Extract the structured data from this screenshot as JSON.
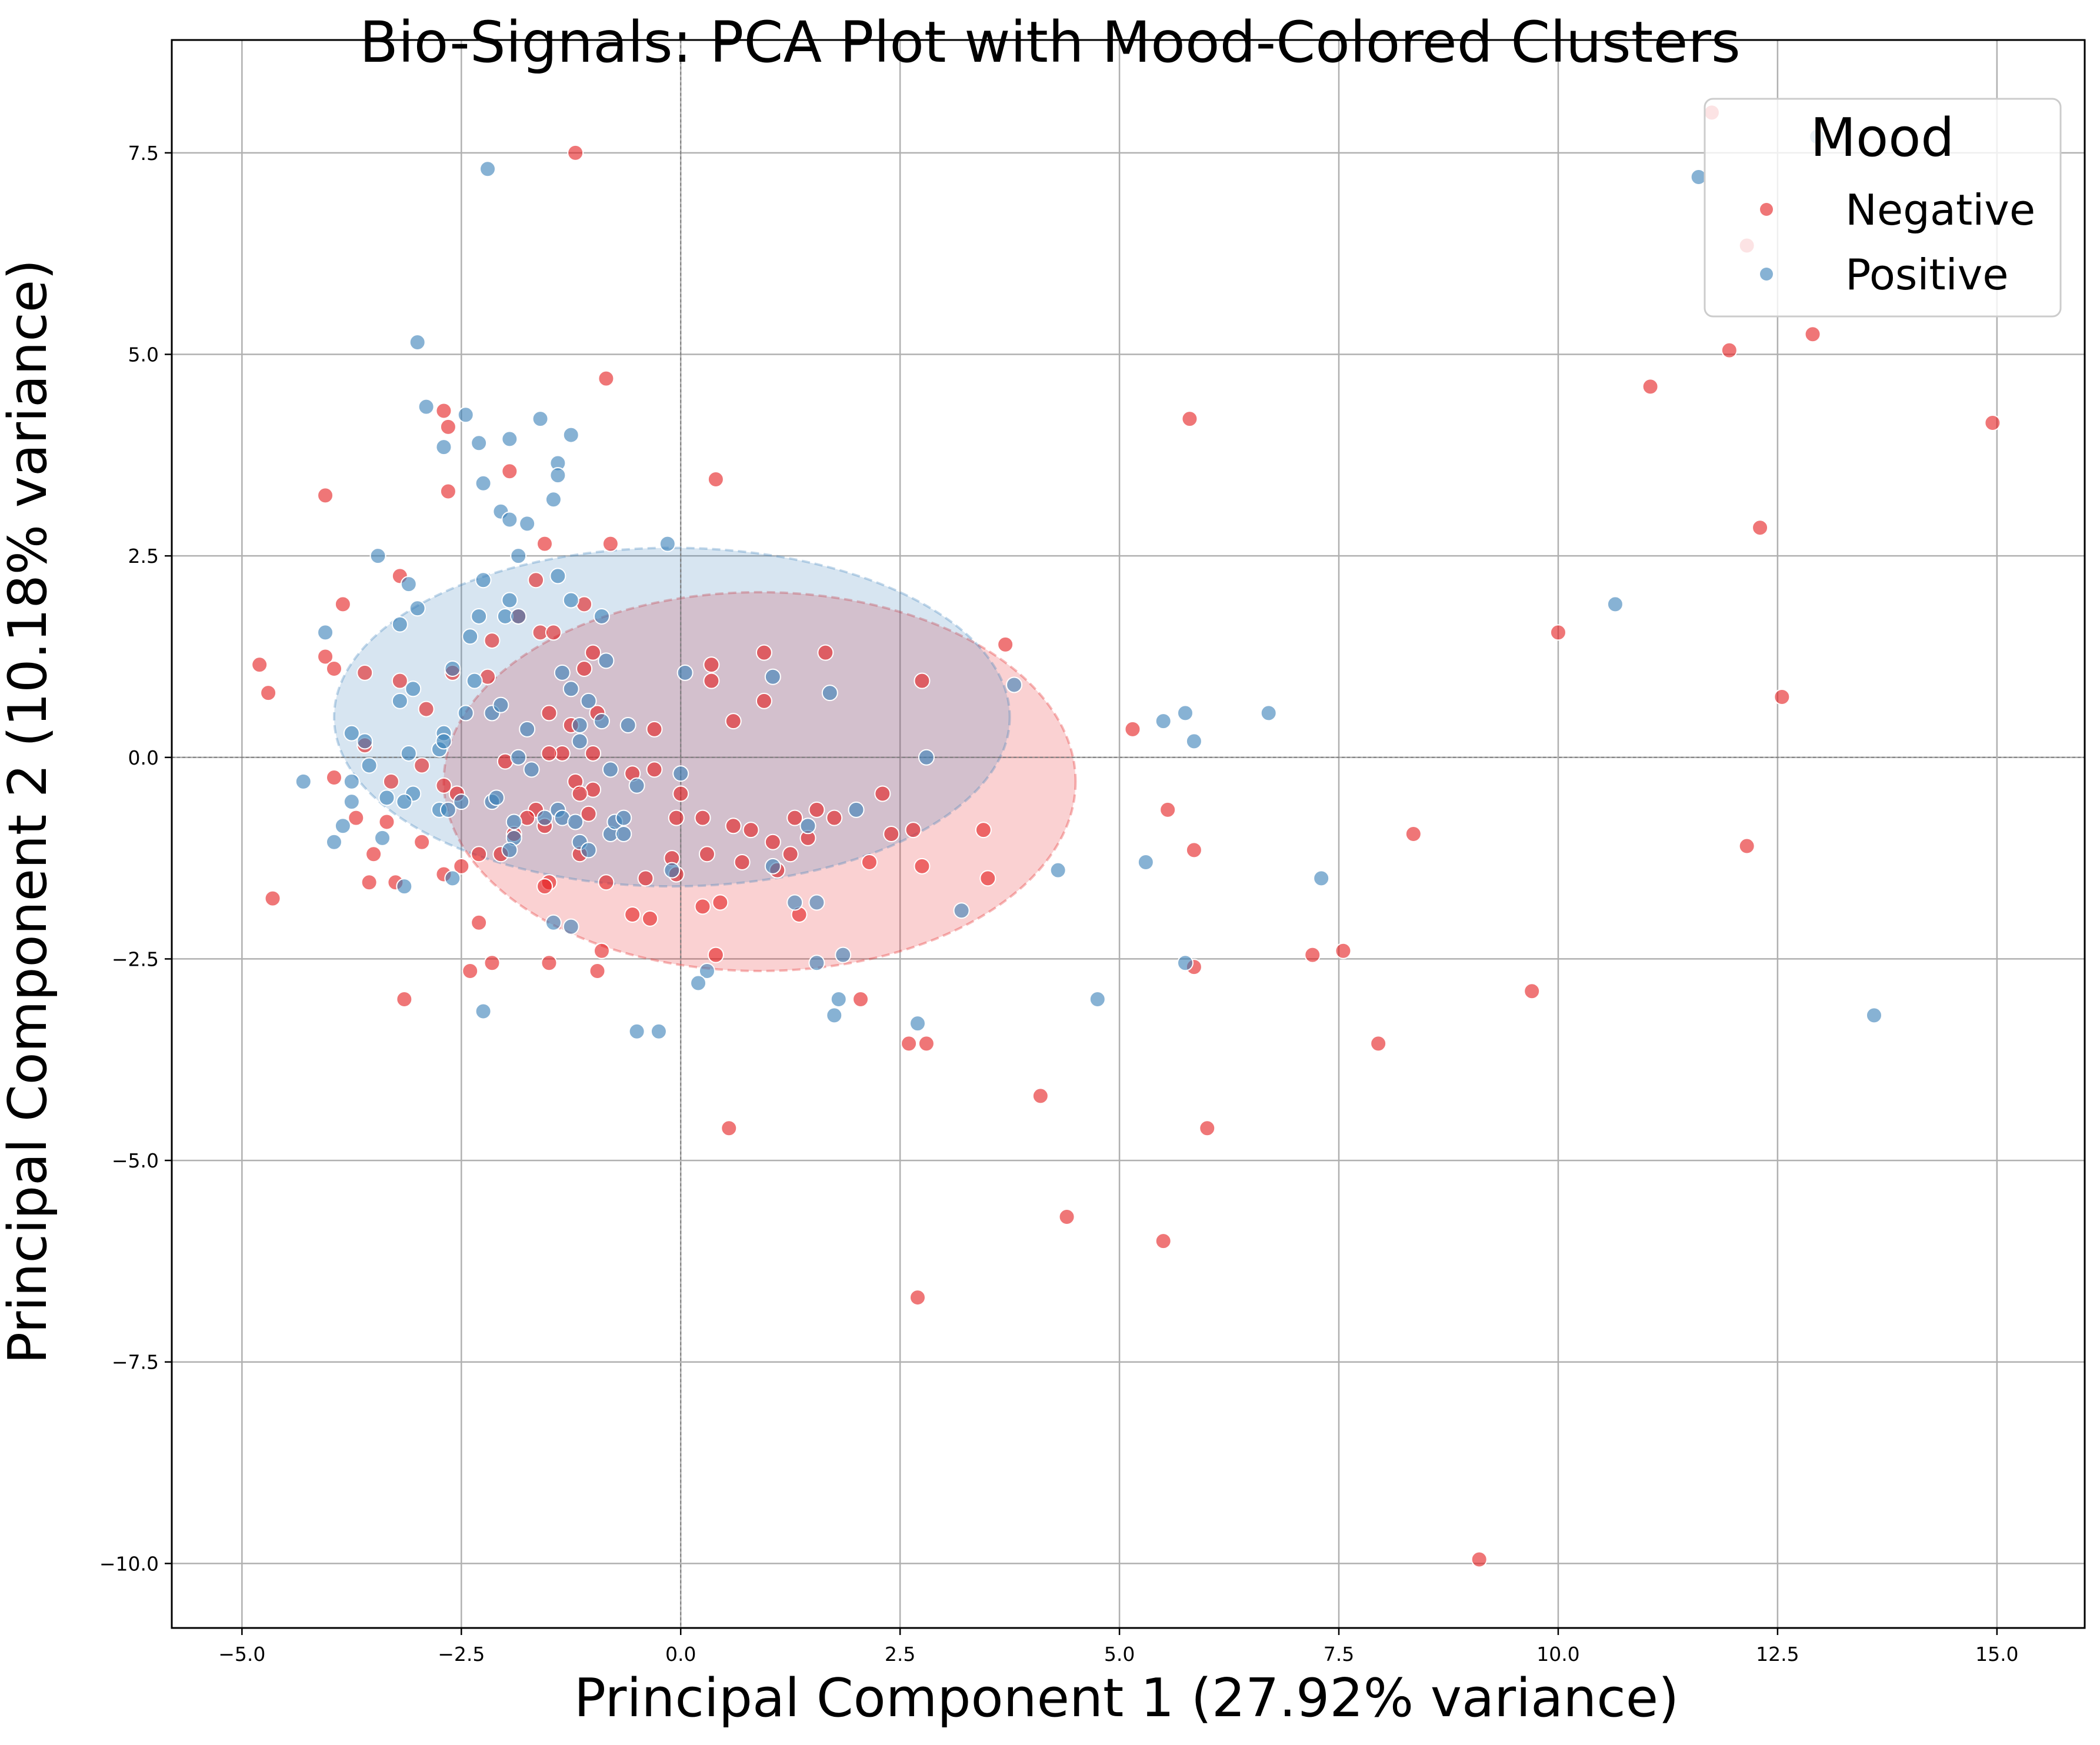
{
  "chart_data": {
    "type": "scatter",
    "title": "Bio-Signals: PCA Plot with Mood-Colored Clusters",
    "xlabel": "Principal Component 1 (27.92% variance)",
    "ylabel": "Principal Component 2 (10.18% variance)",
    "xlim": [
      -5.8,
      16.0
    ],
    "ylim": [
      -10.8,
      8.9
    ],
    "xticks": [
      -5.0,
      -2.5,
      0.0,
      2.5,
      5.0,
      7.5,
      10.0,
      12.5,
      15.0
    ],
    "xtick_labels": [
      "−5.0",
      "−2.5",
      "0.0",
      "2.5",
      "5.0",
      "7.5",
      "10.0",
      "12.5",
      "15.0"
    ],
    "yticks": [
      7.5,
      5.0,
      2.5,
      0.0,
      -2.5,
      -5.0,
      -7.5,
      -10.0
    ],
    "ytick_labels": [
      "7.5",
      "5.0",
      "2.5",
      "0.0",
      "−2.5",
      "−5.0",
      "−7.5",
      "−10.0"
    ],
    "grid": true,
    "zero_lines": true,
    "legend": {
      "title": "Mood",
      "placement": "top-right"
    },
    "series": [
      {
        "name": "Negative",
        "color": "#e41a1c",
        "ellipse": {
          "cx": 0.9,
          "cy": -0.3,
          "rx": 3.6,
          "ry": 2.35
        },
        "points": [
          [
            -1.2,
            7.5
          ],
          [
            -0.85,
            4.7
          ],
          [
            -2.65,
            4.1
          ],
          [
            -2.7,
            4.3
          ],
          [
            -2.65,
            3.3
          ],
          [
            -4.05,
            3.25
          ],
          [
            -1.95,
            3.55
          ],
          [
            0.4,
            3.45
          ],
          [
            -1.55,
            2.65
          ],
          [
            -0.8,
            2.65
          ],
          [
            -1.65,
            2.2
          ],
          [
            -3.2,
            2.25
          ],
          [
            -3.85,
            1.9
          ],
          [
            -4.8,
            1.15
          ],
          [
            -4.7,
            0.8
          ],
          [
            -4.05,
            1.25
          ],
          [
            -3.95,
            1.1
          ],
          [
            -2.6,
            1.05
          ],
          [
            -3.2,
            0.95
          ],
          [
            -2.9,
            0.6
          ],
          [
            -3.6,
            1.05
          ],
          [
            -2.2,
            1.0
          ],
          [
            -2.15,
            1.45
          ],
          [
            -1.6,
            1.55
          ],
          [
            -1.45,
            1.55
          ],
          [
            -1.1,
            1.1
          ],
          [
            -1.0,
            1.3
          ],
          [
            -0.95,
            0.55
          ],
          [
            -1.1,
            1.9
          ],
          [
            -1.85,
            1.75
          ],
          [
            -1.25,
            0.4
          ],
          [
            -1.5,
            0.55
          ],
          [
            -1.35,
            0.05
          ],
          [
            -1.5,
            0.05
          ],
          [
            -1.0,
            0.05
          ],
          [
            -0.3,
            0.35
          ],
          [
            0.35,
            1.15
          ],
          [
            0.35,
            0.95
          ],
          [
            0.95,
            1.3
          ],
          [
            0.95,
            0.7
          ],
          [
            0.6,
            0.45
          ],
          [
            1.65,
            1.3
          ],
          [
            3.7,
            1.4
          ],
          [
            2.75,
            0.95
          ],
          [
            -3.6,
            0.15
          ],
          [
            -3.7,
            -0.75
          ],
          [
            -3.95,
            -0.25
          ],
          [
            -3.3,
            -0.3
          ],
          [
            -2.95,
            -0.1
          ],
          [
            -2.7,
            -0.35
          ],
          [
            -2.55,
            -0.45
          ],
          [
            -2.0,
            -0.05
          ],
          [
            -1.65,
            -0.65
          ],
          [
            -1.55,
            -0.85
          ],
          [
            -1.75,
            -0.75
          ],
          [
            -1.2,
            -0.3
          ],
          [
            -1.05,
            -0.7
          ],
          [
            -1.0,
            -0.4
          ],
          [
            -1.15,
            -0.45
          ],
          [
            -0.55,
            -0.2
          ],
          [
            -0.3,
            -0.15
          ],
          [
            0.0,
            -0.45
          ],
          [
            -0.05,
            -0.75
          ],
          [
            0.25,
            -0.75
          ],
          [
            0.6,
            -0.85
          ],
          [
            0.8,
            -0.9
          ],
          [
            1.05,
            -1.05
          ],
          [
            1.3,
            -0.75
          ],
          [
            1.55,
            -0.65
          ],
          [
            1.75,
            -0.75
          ],
          [
            2.3,
            -0.45
          ],
          [
            -3.35,
            -0.8
          ],
          [
            -3.5,
            -1.2
          ],
          [
            -3.55,
            -1.55
          ],
          [
            -3.25,
            -1.55
          ],
          [
            -2.95,
            -1.05
          ],
          [
            -2.7,
            -1.45
          ],
          [
            -2.5,
            -1.35
          ],
          [
            -2.3,
            -1.2
          ],
          [
            -2.05,
            -1.2
          ],
          [
            -1.9,
            -0.95
          ],
          [
            -1.5,
            -1.55
          ],
          [
            -1.55,
            -1.6
          ],
          [
            -1.15,
            -1.2
          ],
          [
            -0.85,
            -1.55
          ],
          [
            -0.4,
            -1.5
          ],
          [
            -0.1,
            -1.25
          ],
          [
            -0.05,
            -1.45
          ],
          [
            0.3,
            -1.2
          ],
          [
            0.7,
            -1.3
          ],
          [
            1.1,
            -1.4
          ],
          [
            1.25,
            -1.2
          ],
          [
            1.45,
            -1.0
          ],
          [
            -0.55,
            -1.95
          ],
          [
            -0.35,
            -2.0
          ],
          [
            0.25,
            -1.85
          ],
          [
            0.45,
            -1.8
          ],
          [
            1.35,
            -1.95
          ],
          [
            2.15,
            -1.3
          ],
          [
            2.4,
            -0.95
          ],
          [
            2.65,
            -0.9
          ],
          [
            2.75,
            -1.35
          ],
          [
            3.45,
            -0.9
          ],
          [
            3.5,
            -1.5
          ],
          [
            -2.3,
            -2.05
          ],
          [
            -2.4,
            -2.65
          ],
          [
            -2.15,
            -2.55
          ],
          [
            -1.5,
            -2.55
          ],
          [
            -0.95,
            -2.65
          ],
          [
            -0.9,
            -2.4
          ],
          [
            0.4,
            -2.45
          ],
          [
            2.05,
            -3.0
          ],
          [
            2.6,
            -3.55
          ],
          [
            2.8,
            -3.55
          ],
          [
            -3.15,
            -3.0
          ],
          [
            -4.65,
            -1.75
          ],
          [
            0.55,
            -4.6
          ],
          [
            2.7,
            -6.7
          ],
          [
            4.1,
            -4.2
          ],
          [
            4.4,
            -5.7
          ],
          [
            5.5,
            -6.0
          ],
          [
            6.0,
            -4.6
          ],
          [
            5.85,
            -2.6
          ],
          [
            5.85,
            -1.15
          ],
          [
            5.55,
            -0.65
          ],
          [
            5.15,
            0.35
          ],
          [
            5.8,
            4.2
          ],
          [
            7.2,
            -2.45
          ],
          [
            7.55,
            -2.4
          ],
          [
            7.95,
            -3.55
          ],
          [
            8.35,
            -0.95
          ],
          [
            9.7,
            -2.9
          ],
          [
            10.0,
            1.55
          ],
          [
            9.1,
            -9.95
          ],
          [
            11.05,
            4.6
          ],
          [
            11.95,
            5.05
          ],
          [
            11.75,
            8.0
          ],
          [
            12.15,
            6.35
          ],
          [
            12.3,
            2.85
          ],
          [
            12.15,
            -1.1
          ],
          [
            12.55,
            0.75
          ],
          [
            12.9,
            5.25
          ],
          [
            14.95,
            4.15
          ]
        ]
      },
      {
        "name": "Positive",
        "color": "#377eb8",
        "ellipse": {
          "cx": -0.1,
          "cy": 0.5,
          "rx": 3.85,
          "ry": 2.1
        },
        "points": [
          [
            -2.2,
            7.3
          ],
          [
            -3.0,
            5.15
          ],
          [
            -2.9,
            4.35
          ],
          [
            -2.45,
            4.25
          ],
          [
            -2.7,
            3.85
          ],
          [
            -2.3,
            3.9
          ],
          [
            -1.95,
            3.95
          ],
          [
            -1.6,
            4.2
          ],
          [
            -1.25,
            4.0
          ],
          [
            -1.4,
            3.65
          ],
          [
            -1.4,
            3.5
          ],
          [
            -2.25,
            3.4
          ],
          [
            -2.05,
            3.05
          ],
          [
            -1.95,
            2.95
          ],
          [
            -1.75,
            2.9
          ],
          [
            -1.45,
            3.2
          ],
          [
            -1.85,
            2.5
          ],
          [
            -0.15,
            2.65
          ],
          [
            -3.45,
            2.5
          ],
          [
            -3.1,
            2.15
          ],
          [
            -2.25,
            2.2
          ],
          [
            -1.4,
            2.25
          ],
          [
            -1.25,
            1.95
          ],
          [
            -1.95,
            1.95
          ],
          [
            -2.0,
            1.75
          ],
          [
            -3.0,
            1.85
          ],
          [
            -2.3,
            1.75
          ],
          [
            -3.2,
            1.65
          ],
          [
            -4.05,
            1.55
          ],
          [
            -2.4,
            1.5
          ],
          [
            -1.85,
            1.75
          ],
          [
            -0.9,
            1.75
          ],
          [
            -0.85,
            1.2
          ],
          [
            -1.35,
            1.05
          ],
          [
            -1.25,
            0.85
          ],
          [
            -1.05,
            0.7
          ],
          [
            -1.15,
            0.4
          ],
          [
            -0.9,
            0.45
          ],
          [
            -0.6,
            0.4
          ],
          [
            0.05,
            1.05
          ],
          [
            1.05,
            1.0
          ],
          [
            1.7,
            0.8
          ],
          [
            3.8,
            0.9
          ],
          [
            -3.05,
            0.85
          ],
          [
            -3.2,
            0.7
          ],
          [
            -2.6,
            1.1
          ],
          [
            -2.35,
            0.95
          ],
          [
            -2.15,
            0.55
          ],
          [
            -2.45,
            0.55
          ],
          [
            -2.7,
            0.3
          ],
          [
            -2.75,
            0.1
          ],
          [
            -2.7,
            0.2
          ],
          [
            -2.05,
            0.65
          ],
          [
            -1.75,
            0.35
          ],
          [
            -1.85,
            0.0
          ],
          [
            -1.15,
            0.2
          ],
          [
            -0.8,
            -0.15
          ],
          [
            -0.5,
            -0.35
          ],
          [
            0.0,
            -0.2
          ],
          [
            -3.75,
            0.3
          ],
          [
            -3.6,
            0.2
          ],
          [
            -3.55,
            -0.1
          ],
          [
            -3.75,
            -0.3
          ],
          [
            -3.75,
            -0.55
          ],
          [
            -3.1,
            0.05
          ],
          [
            -3.05,
            -0.45
          ],
          [
            -3.15,
            -0.55
          ],
          [
            -3.35,
            -0.5
          ],
          [
            -3.4,
            -1.0
          ],
          [
            -2.75,
            -0.65
          ],
          [
            -2.65,
            -0.65
          ],
          [
            -2.5,
            -0.55
          ],
          [
            -2.15,
            -0.55
          ],
          [
            -2.1,
            -0.5
          ],
          [
            -1.9,
            -0.8
          ],
          [
            -1.9,
            -1.0
          ],
          [
            -1.7,
            -0.15
          ],
          [
            -1.55,
            -0.75
          ],
          [
            -1.4,
            -0.65
          ],
          [
            -1.35,
            -0.75
          ],
          [
            -1.2,
            -0.8
          ],
          [
            -1.15,
            -1.05
          ],
          [
            -1.05,
            -1.15
          ],
          [
            -0.8,
            -0.95
          ],
          [
            -0.75,
            -0.8
          ],
          [
            -0.65,
            -0.75
          ],
          [
            -0.65,
            -0.95
          ],
          [
            -0.1,
            -1.4
          ],
          [
            1.05,
            -1.35
          ],
          [
            1.3,
            -1.8
          ],
          [
            1.45,
            -0.85
          ],
          [
            2.0,
            -0.65
          ],
          [
            2.8,
            0.0
          ],
          [
            3.2,
            -1.9
          ],
          [
            1.55,
            -1.8
          ],
          [
            1.55,
            -2.55
          ],
          [
            1.85,
            -2.45
          ],
          [
            1.8,
            -3.0
          ],
          [
            1.75,
            -3.2
          ],
          [
            2.7,
            -3.3
          ],
          [
            0.3,
            -2.65
          ],
          [
            0.2,
            -2.8
          ],
          [
            -0.5,
            -3.4
          ],
          [
            -0.25,
            -3.4
          ],
          [
            -2.25,
            -3.15
          ],
          [
            -3.15,
            -1.6
          ],
          [
            -2.6,
            -1.5
          ],
          [
            -1.95,
            -1.15
          ],
          [
            -1.45,
            -2.05
          ],
          [
            -1.25,
            -2.1
          ],
          [
            -4.3,
            -0.3
          ],
          [
            -3.85,
            -0.85
          ],
          [
            -3.95,
            -1.05
          ],
          [
            4.3,
            -1.4
          ],
          [
            4.75,
            -3.0
          ],
          [
            5.3,
            -1.3
          ],
          [
            5.5,
            0.45
          ],
          [
            5.75,
            0.55
          ],
          [
            5.85,
            0.2
          ],
          [
            5.75,
            -2.55
          ],
          [
            6.7,
            0.55
          ],
          [
            7.3,
            -1.5
          ],
          [
            10.65,
            1.9
          ],
          [
            11.6,
            7.2
          ],
          [
            12.95,
            7.7
          ],
          [
            13.6,
            -3.2
          ]
        ]
      }
    ]
  }
}
